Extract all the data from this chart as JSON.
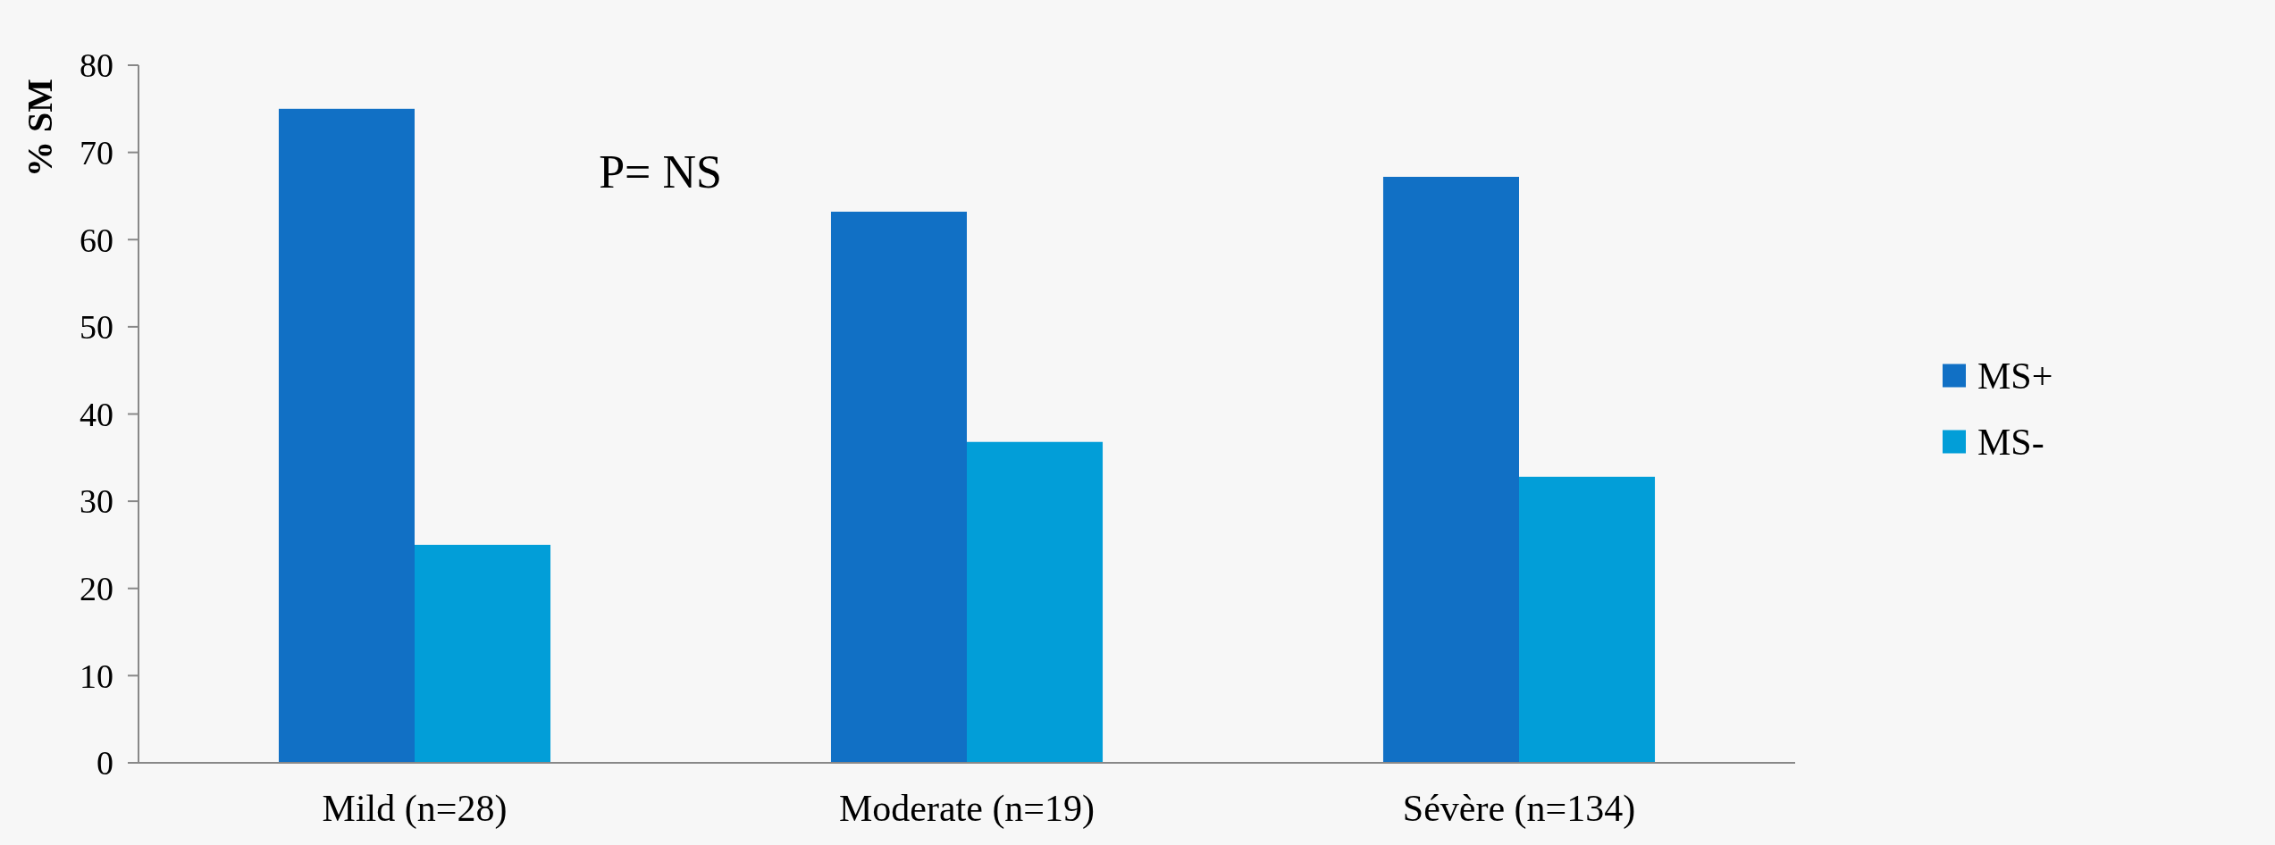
{
  "chart_data": {
    "type": "bar",
    "ylabel": "% SM",
    "categories": [
      "Mild (n=28)",
      "Moderate (n=19)",
      "Sévère (n=134)"
    ],
    "series": [
      {
        "name": "MS+",
        "color": "#1170c5",
        "values": [
          75,
          63.2,
          67.2
        ]
      },
      {
        "name": "MS-",
        "color": "#029ed8",
        "values": [
          25,
          36.8,
          32.8
        ]
      }
    ],
    "ylim": [
      0,
      80
    ],
    "yticks": [
      0,
      10,
      20,
      30,
      40,
      50,
      60,
      70,
      80
    ],
    "legend": "right",
    "annotations": [
      "P= NS"
    ]
  }
}
